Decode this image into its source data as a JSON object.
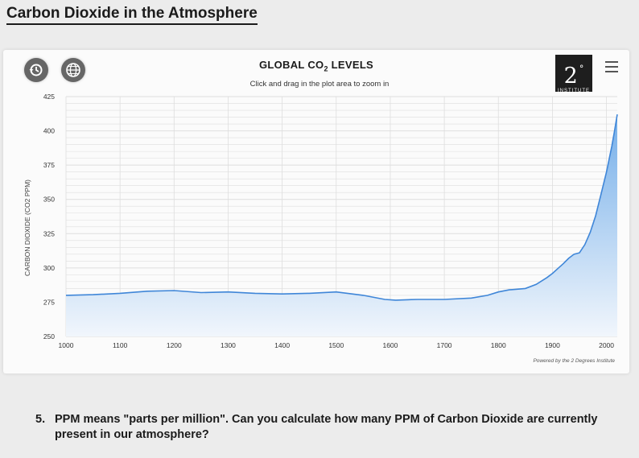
{
  "page": {
    "title": "Carbon Dioxide in the Atmosphere"
  },
  "chart": {
    "title_prefix": "GLOBAL CO",
    "title_sub": "2",
    "title_suffix": " LEVELS",
    "subtitle": "Click and drag in the plot area to zoom in",
    "credit": "Powered by the 2 Degrees Institute"
  },
  "logo": {
    "main": "2",
    "degree": "°",
    "sub": "INSTITUTE"
  },
  "controls": {
    "history_icon": "history-icon",
    "globe_icon": "globe-icon",
    "menu_icon": "hamburger-menu-icon"
  },
  "question": {
    "number": "5.",
    "text": "PPM means \"parts per million\". Can you calculate how many PPM of Carbon Dioxide are currently present in our atmosphere?"
  },
  "colors": {
    "line": "#3f86d8",
    "fill_top": "#74aee9",
    "fill_bottom": "#f1f6fc",
    "grid": "#dedede"
  },
  "chart_data": {
    "type": "area",
    "title": "GLOBAL CO2 LEVELS",
    "ylabel": "CARBON DIOXIDE (CO2 PPM)",
    "xlabel": "",
    "xlim": [
      1000,
      2020
    ],
    "ylim": [
      250,
      425
    ],
    "x_ticks": [
      1000,
      1100,
      1200,
      1300,
      1400,
      1500,
      1600,
      1700,
      1800,
      1900,
      2000
    ],
    "y_ticks": [
      250,
      275,
      300,
      325,
      350,
      375,
      400,
      425
    ],
    "grid": true,
    "series": [
      {
        "x": [
          1000,
          1050,
          1100,
          1150,
          1200,
          1250,
          1300,
          1350,
          1400,
          1450,
          1500,
          1550,
          1590,
          1610,
          1650,
          1700,
          1750,
          1780,
          1800,
          1820,
          1850,
          1870,
          1890,
          1900,
          1910,
          1920,
          1930,
          1940,
          1950,
          1960,
          1970,
          1980,
          1990,
          2000,
          2010,
          2015,
          2020
        ],
        "values": [
          280,
          280.5,
          281.5,
          283,
          283.5,
          282,
          282.5,
          281.5,
          281,
          281.5,
          282.5,
          280,
          277,
          276.5,
          277,
          277,
          278,
          280,
          282.5,
          284,
          285,
          288,
          293,
          296,
          299.5,
          303,
          307,
          310,
          311,
          317,
          326,
          338,
          354,
          370,
          389,
          400,
          412
        ]
      }
    ]
  }
}
